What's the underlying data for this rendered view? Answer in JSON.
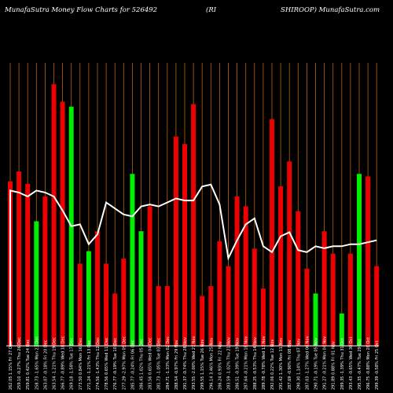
{
  "header": {
    "left": "MunafaSutra  Money Flow  Charts for 526492",
    "mid": "(RI",
    "right": "SHIROOP) MunafaSutra.com"
  },
  "chart_data": {
    "type": "bar",
    "title": "MunafaSutra  Money Flow  Charts for 526492 (RISHIROOP) MunafaSutra.com",
    "colors": {
      "up": "#00ee00",
      "down": "#ee0000",
      "line": "#ffffff",
      "grid": "#b8650f",
      "baseline": "#ffffff"
    },
    "categories": [
      "262.05 1.15% Fri 27 Dec",
      "259.10 -0.27% Thu 26 Dec",
      "259.81 0.42% Tue 24 Dec",
      "258.73 -1.65% Mon 23 Dec",
      "263.07 -0.18% Fri 20 Dec",
      "263.54 -1.21% Thu 19 Dec",
      "266.77 -0.89% Wed 18 Dec",
      "269.18 -1.58% Tue 17 Dec",
      "273.50 0.84% Mon 16 Dec",
      "271.24 -1.21% Fri 13 Dec",
      "274.56 -1.43% Thu 12 Dec",
      "278.56 0.65% Wed 11 Dec",
      "276.77 -0.19% Tue 10 Dec",
      "277.29 -2.97% Mon 09 Dec",
      "285.77 -0.24% Fri 06 Dec",
      "286.45 1.02% Thu 05 Dec",
      "283.56 0.65% Wed 04 Dec",
      "281.73 -1.05% Tue 03 Dec",
      "284.71 -1.33% Mon 02 Dec",
      "288.54 -0.97% Fri 29 Nov",
      "291.37 -0.74% Thu 28 Nov",
      "293.55 -2.00% Wed 27 Nov",
      "299.55 1.15% Tue 26 Nov",
      "296.14 3.46% Mon 25 Nov",
      "286.24 0.93% Fri 22 Nov",
      "283.59 -1.02% Thu 21 Nov",
      "286.51 -0.39% Tue 19 Nov",
      "287.64 -0.21% Mon 18 Nov",
      "288.25 -0.53% Thu 14 Nov",
      "289.78 -0.78% Wed 13 Nov",
      "292.06 0.22% Tue 12 Nov",
      "291.42 1.30% Mon 11 Nov",
      "287.69 -0.90% Fri 08 Nov",
      "290.30 1.14% Thu 07 Nov",
      "287.03 -1.27% Wed 06 Nov",
      "290.71 -0.19% Tue 05 Nov",
      "291.27 -0.21% Mon 04 Nov",
      "291.89 0.88% Fri 01 Nov",
      "289.35 -1.39% Thu 31 Oct",
      "293.43 -0.65% Wed 30 Oct",
      "295.35 -0.47% Tue 29 Oct",
      "296.75 -0.88% Mon 28 Oct",
      "299.39 -0.58% Fri 25 Oct"
    ],
    "price": [
      353,
      352,
      350,
      353,
      352,
      350,
      343,
      335,
      336,
      326,
      331,
      347,
      344,
      341,
      340,
      345,
      346,
      345,
      347,
      349,
      348,
      348,
      355,
      356,
      346,
      319,
      328,
      336,
      339,
      325,
      322,
      330,
      332,
      323,
      322,
      325,
      324,
      325,
      325,
      326,
      326,
      327,
      328
    ],
    "flow": [
      66,
      70,
      65,
      50,
      60,
      105,
      98,
      96,
      33,
      38,
      46,
      33,
      21,
      35,
      69,
      46,
      56,
      24,
      24,
      84,
      81,
      97,
      20,
      24,
      42,
      32,
      60,
      56,
      39,
      23,
      91,
      64,
      74,
      54,
      31,
      21,
      46,
      37,
      13,
      37,
      69,
      68,
      32
    ],
    "flow_dir": [
      "down",
      "down",
      "down",
      "up",
      "down",
      "down",
      "down",
      "up",
      "down",
      "up",
      "down",
      "down",
      "down",
      "down",
      "up",
      "up",
      "down",
      "down",
      "down",
      "down",
      "down",
      "down",
      "down",
      "down",
      "down",
      "down",
      "down",
      "down",
      "down",
      "down",
      "down",
      "down",
      "down",
      "down",
      "down",
      "up",
      "down",
      "down",
      "up",
      "down",
      "up",
      "down",
      "down"
    ]
  }
}
